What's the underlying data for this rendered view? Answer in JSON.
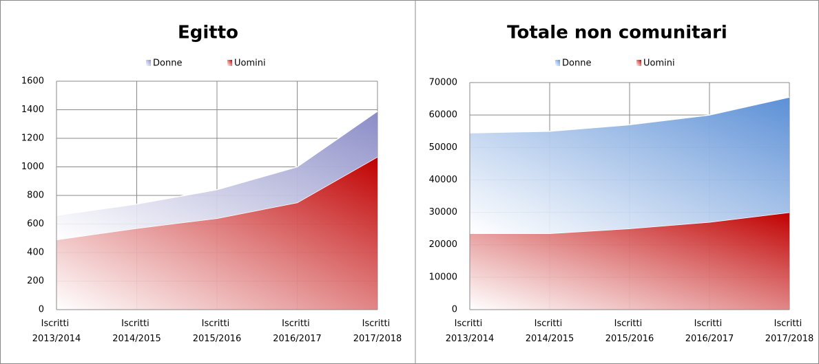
{
  "chart_data": [
    {
      "type": "stacked-area",
      "title": "Egitto",
      "categories": [
        "Iscritti 2013/2014",
        "Iscritti 2014/2015",
        "Iscritti 2015/2016",
        "Iscritti 2016/2017",
        "Iscritti 2017/2018"
      ],
      "series": [
        {
          "name": "Donne",
          "color": "#8a8cc6",
          "values": [
            170,
            170,
            200,
            250,
            320
          ]
        },
        {
          "name": "Uomini",
          "color": "#c00000",
          "values": [
            490,
            570,
            640,
            750,
            1070
          ]
        }
      ],
      "ylim": [
        0,
        1600
      ],
      "yticks": [
        0,
        200,
        400,
        600,
        800,
        1000,
        1200,
        1400,
        1600
      ],
      "grid": true,
      "legend": "top"
    },
    {
      "type": "stacked-area",
      "title": "Totale non comunitari",
      "categories": [
        "Iscritti 2013/2014",
        "Iscritti 2014/2015",
        "Iscritti 2015/2016",
        "Iscritti 2016/2017",
        "Iscritti 2017/2018"
      ],
      "series": [
        {
          "name": "Donne",
          "color": "#5b8fd6",
          "values": [
            31000,
            31500,
            32000,
            33000,
            35500
          ]
        },
        {
          "name": "Uomini",
          "color": "#c00000",
          "values": [
            23500,
            23500,
            25000,
            27000,
            30000
          ]
        }
      ],
      "ylim": [
        0,
        70000
      ],
      "yticks": [
        0,
        10000,
        20000,
        30000,
        40000,
        50000,
        60000,
        70000
      ],
      "grid": true,
      "legend": "top"
    }
  ]
}
